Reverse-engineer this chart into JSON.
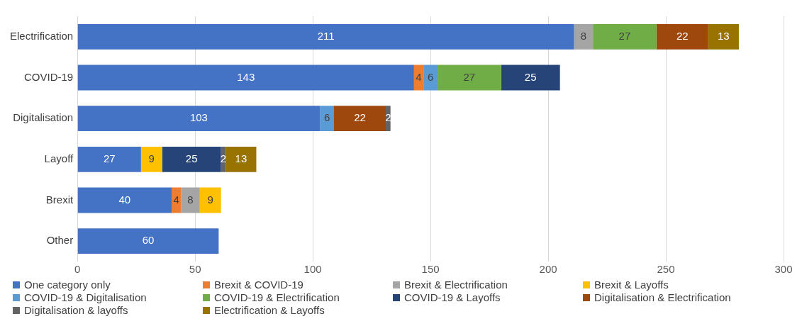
{
  "chart_data": {
    "type": "bar",
    "orientation": "horizontal",
    "stacked": true,
    "categories": [
      "Electrification",
      "COVID-19",
      "Digitalisation",
      "Layoff",
      "Brexit",
      "Other"
    ],
    "series": [
      {
        "name": "One category only",
        "color": "#4472c4",
        "values": [
          211,
          143,
          103,
          27,
          40,
          60
        ]
      },
      {
        "name": "Brexit & COVID-19",
        "color": "#ed7d31",
        "values": [
          null,
          4,
          null,
          null,
          4,
          null
        ]
      },
      {
        "name": "Brexit & Electrification",
        "color": "#a5a5a5",
        "values": [
          8,
          null,
          null,
          null,
          8,
          null
        ]
      },
      {
        "name": "Brexit & Layoffs",
        "color": "#ffc000",
        "values": [
          null,
          null,
          null,
          9,
          9,
          null
        ]
      },
      {
        "name": "COVID-19 & Digitalisation",
        "color": "#5b9bd5",
        "values": [
          null,
          6,
          6,
          null,
          null,
          null
        ]
      },
      {
        "name": "COVID-19 & Electrification",
        "color": "#70ad47",
        "values": [
          27,
          27,
          null,
          null,
          null,
          null
        ]
      },
      {
        "name": "COVID-19 & Layoffs",
        "color": "#264478",
        "values": [
          null,
          25,
          null,
          25,
          null,
          null
        ]
      },
      {
        "name": "Digitalisation & Electrification",
        "color": "#9e480e",
        "values": [
          22,
          null,
          22,
          null,
          null,
          null
        ]
      },
      {
        "name": "Digitalisation & layoffs",
        "color": "#636363",
        "values": [
          null,
          null,
          2,
          2,
          null,
          null
        ]
      },
      {
        "name": "Electrification & Layoffs",
        "color": "#997300",
        "values": [
          13,
          null,
          null,
          13,
          null,
          null
        ]
      }
    ],
    "xlim": [
      0,
      300
    ],
    "xticks": [
      0,
      50,
      100,
      150,
      200,
      250,
      300
    ],
    "grid": "x",
    "legend": "bottom",
    "data_labels": true
  }
}
